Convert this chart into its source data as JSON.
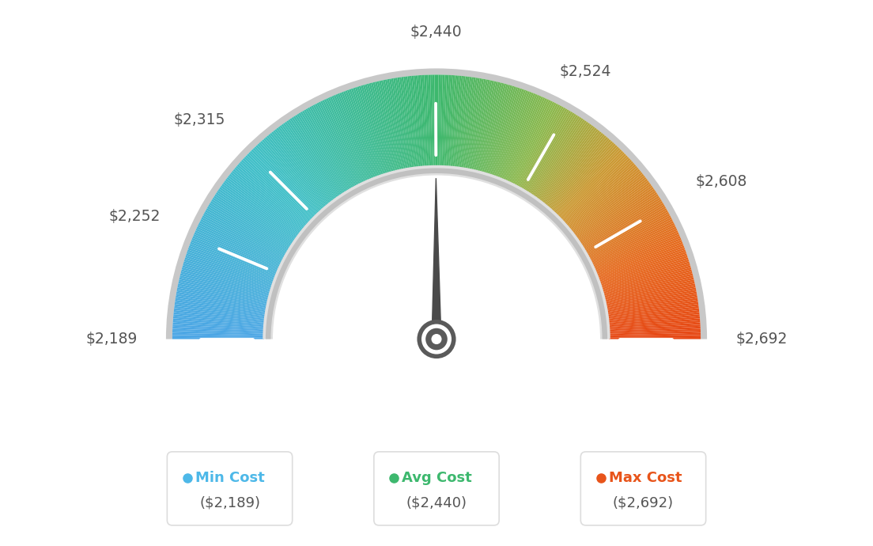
{
  "min_val": 2189,
  "max_val": 2692,
  "avg_val": 2440,
  "tick_labels": [
    "$2,189",
    "$2,252",
    "$2,315",
    "$2,440",
    "$2,524",
    "$2,608",
    "$2,692"
  ],
  "tick_values": [
    2189,
    2252,
    2315,
    2440,
    2524,
    2608,
    2692
  ],
  "legend_items": [
    {
      "label": "Min Cost",
      "value": "($2,189)",
      "color": "#4db8e8"
    },
    {
      "label": "Avg Cost",
      "value": "($2,440)",
      "color": "#3db86e"
    },
    {
      "label": "Max Cost",
      "value": "($2,692)",
      "color": "#e8541a"
    }
  ],
  "background_color": "#ffffff",
  "needle_value": 2440,
  "color_stops": [
    [
      0.0,
      [
        0.3,
        0.65,
        0.9
      ]
    ],
    [
      0.25,
      [
        0.25,
        0.75,
        0.78
      ]
    ],
    [
      0.5,
      [
        0.24,
        0.72,
        0.43
      ]
    ],
    [
      0.65,
      [
        0.55,
        0.72,
        0.3
      ]
    ],
    [
      0.75,
      [
        0.8,
        0.6,
        0.2
      ]
    ],
    [
      0.88,
      [
        0.9,
        0.42,
        0.12
      ]
    ],
    [
      1.0,
      [
        0.9,
        0.28,
        0.08
      ]
    ]
  ]
}
